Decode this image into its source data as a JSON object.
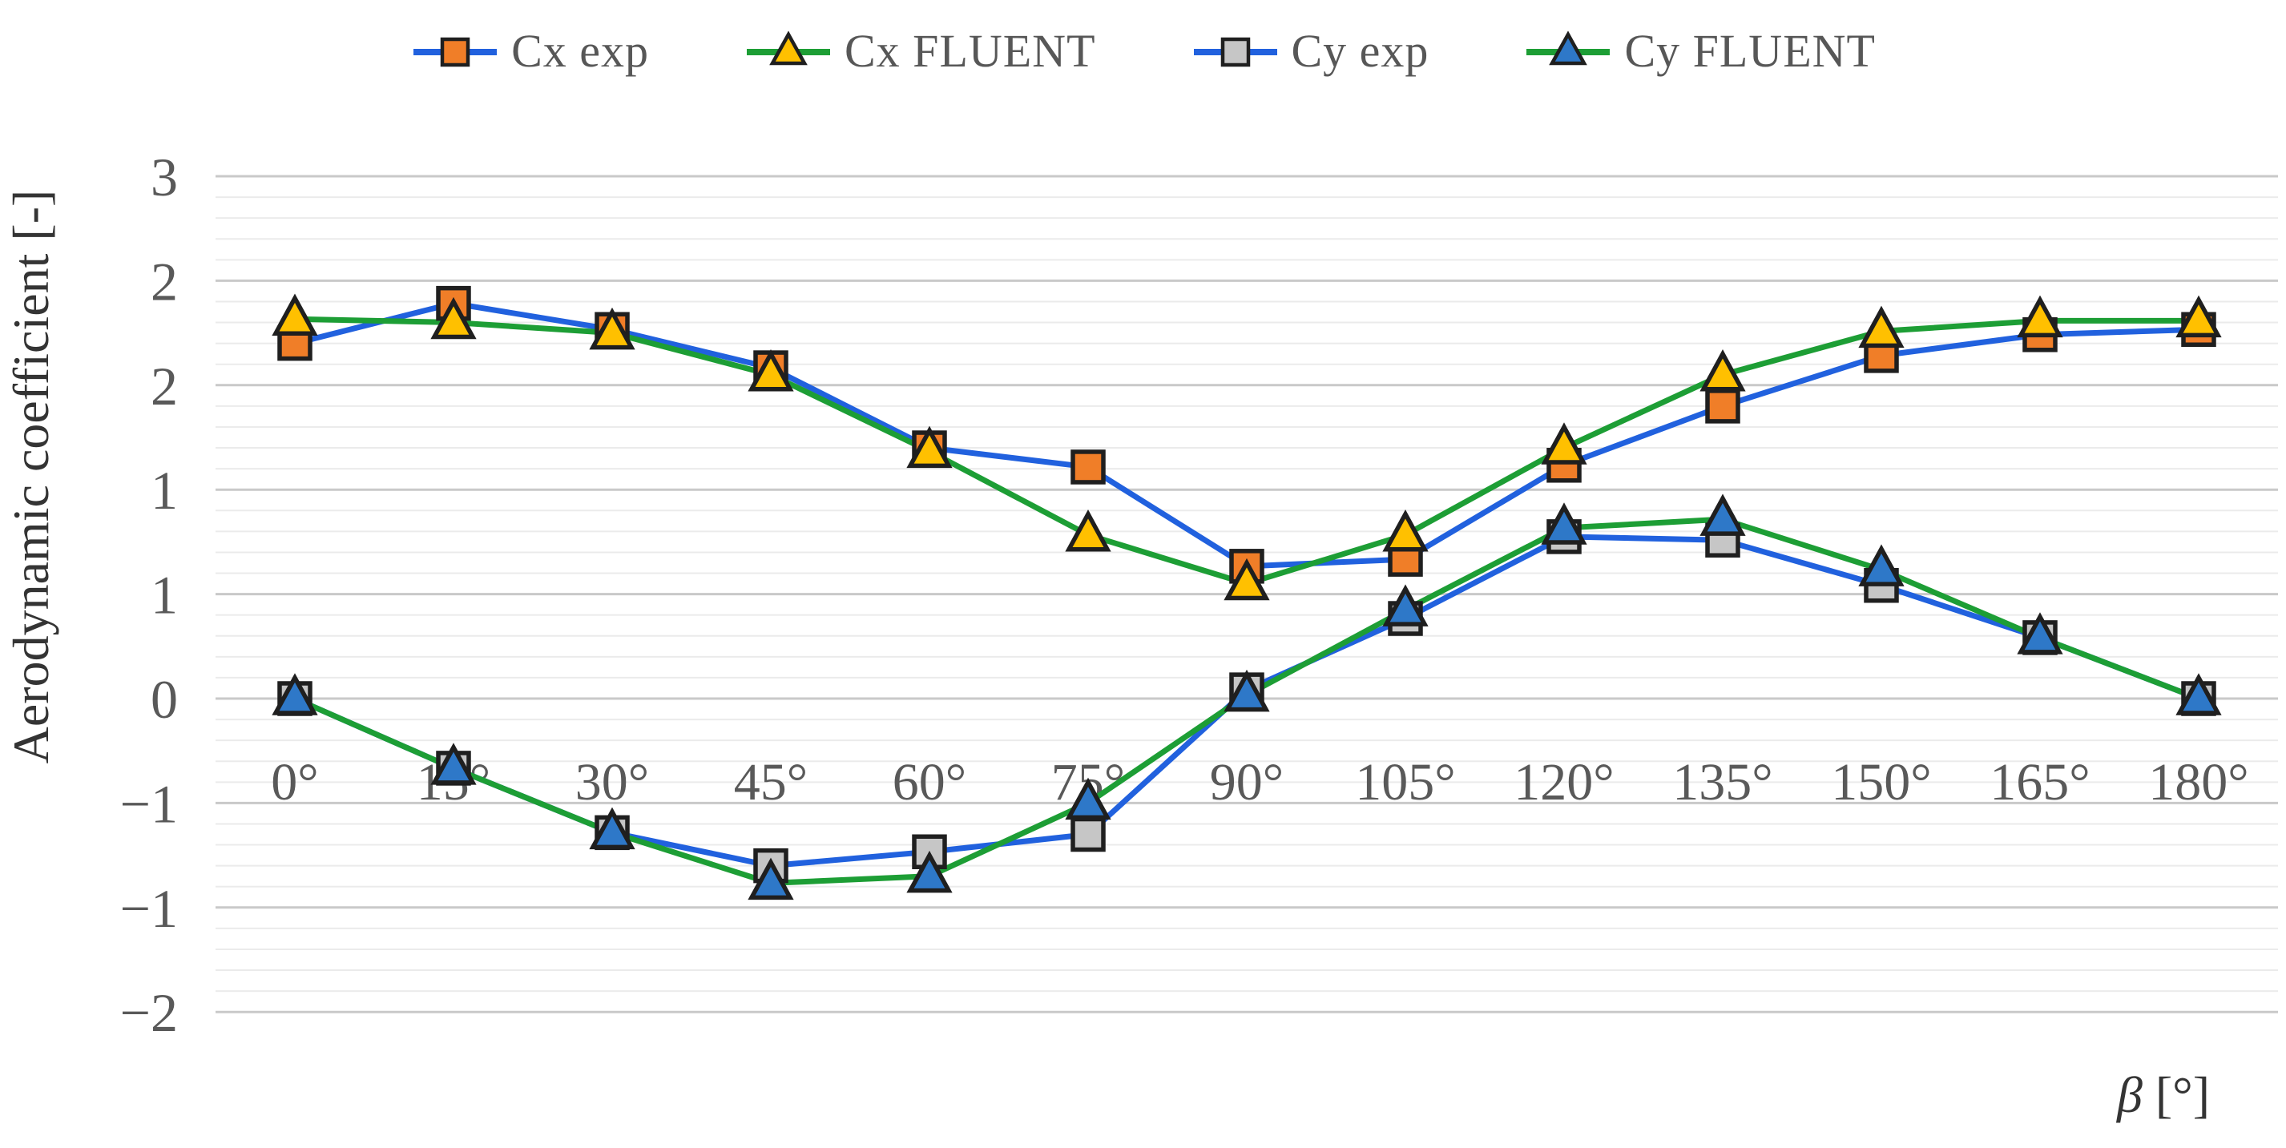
{
  "chart_data": {
    "type": "line",
    "title": "",
    "xlabel": "β [°]",
    "ylabel": "Aerodynamic coefficient [-]",
    "legend_position": "top",
    "grid": "horizontal-only",
    "x_categories": [
      "0°",
      "15°",
      "30°",
      "45°",
      "60°",
      "75°",
      "90°",
      "105°",
      "120°",
      "135°",
      "150°",
      "165°",
      "180°"
    ],
    "y_axis": {
      "min": -1.8,
      "max": 3,
      "major_step": 0.6,
      "minor_step": 0.12,
      "tick_labels": [
        "3",
        "2",
        "2",
        "1",
        "1",
        "0",
        "−1",
        "−1",
        "−2"
      ]
    },
    "colors": {
      "exp_line": "#2161de",
      "fluent_line": "#1d9e35",
      "cx_exp_marker": "#f07e28",
      "cx_fluent_marker": "#ffc000",
      "cy_exp_marker": "#c6c6c6",
      "cy_fluent_marker": "#2e78c8",
      "marker_outline": "#1f1f1f",
      "tick_text": "#595959"
    },
    "series": [
      {
        "name": "Cx exp",
        "line_color": "#2161de",
        "marker": "square",
        "marker_fill": "#f07e28",
        "values": [
          2.04,
          2.27,
          2.12,
          1.9,
          1.44,
          1.33,
          0.76,
          0.8,
          1.34,
          1.68,
          1.97,
          2.09,
          2.12
        ]
      },
      {
        "name": "Cx FLUENT",
        "line_color": "#1d9e35",
        "marker": "triangle",
        "marker_fill": "#ffc000",
        "values": [
          2.18,
          2.16,
          2.1,
          1.86,
          1.42,
          0.94,
          0.66,
          0.94,
          1.44,
          1.86,
          2.11,
          2.17,
          2.17
        ]
      },
      {
        "name": "Cy exp",
        "line_color": "#2161de",
        "marker": "square",
        "marker_fill": "#c6c6c6",
        "values": [
          0.0,
          -0.4,
          -0.77,
          -0.96,
          -0.88,
          -0.78,
          0.05,
          0.46,
          0.93,
          0.91,
          0.65,
          0.35,
          0.0
        ]
      },
      {
        "name": "Cy FLUENT",
        "line_color": "#1d9e35",
        "marker": "triangle",
        "marker_fill": "#2e78c8",
        "values": [
          0.0,
          -0.4,
          -0.77,
          -1.06,
          -1.02,
          -0.6,
          0.02,
          0.51,
          0.98,
          1.03,
          0.74,
          0.35,
          0.0
        ]
      }
    ]
  }
}
